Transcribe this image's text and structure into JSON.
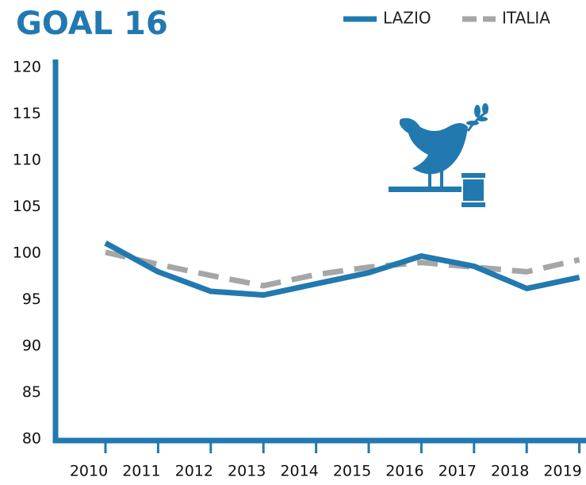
{
  "chart_data": {
    "type": "line",
    "title": "GOAL 16",
    "categories": [
      "2010",
      "2011",
      "2012",
      "2013",
      "2014",
      "2015",
      "2016",
      "2017",
      "2018",
      "2019"
    ],
    "series": [
      {
        "name": "LAZIO",
        "color": "#2179b0",
        "values": [
          101.1,
          98.0,
          95.9,
          95.5,
          96.7,
          97.9,
          99.7,
          98.6,
          96.2,
          97.4
        ]
      },
      {
        "name": "ITALIA",
        "color": "#a6a6a6",
        "values": [
          100.1,
          98.8,
          97.6,
          96.5,
          97.7,
          98.5,
          99.0,
          98.5,
          98.0,
          99.3
        ]
      }
    ],
    "ylim": [
      80,
      120
    ],
    "yticks": [
      80,
      85,
      90,
      95,
      100,
      105,
      110,
      115,
      120
    ],
    "grid": false
  }
}
